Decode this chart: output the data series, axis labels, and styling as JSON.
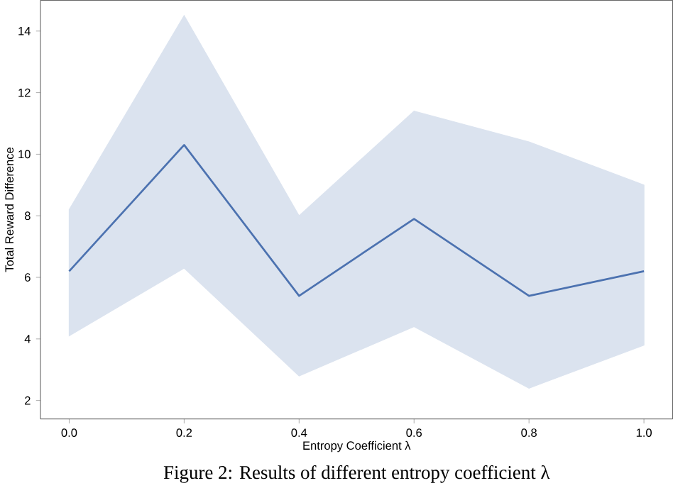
{
  "chart_data": {
    "type": "line",
    "xlabel": "Entropy Coefficient λ",
    "ylabel": "Total Reward Difference",
    "x": [
      0.0,
      0.2,
      0.4,
      0.6,
      0.8,
      1.0
    ],
    "series": [
      {
        "color": "#4c72b0",
        "values": [
          6.2,
          10.3,
          5.4,
          7.9,
          5.4,
          6.2
        ],
        "lower": [
          4.1,
          6.3,
          2.8,
          4.4,
          2.4,
          3.8
        ],
        "upper": [
          8.2,
          14.5,
          8.0,
          11.4,
          10.4,
          9.0
        ]
      }
    ],
    "xlim": [
      -0.05,
      1.05
    ],
    "ylim": [
      1.4,
      15
    ],
    "xticks": [
      {
        "value": 0.0,
        "label": "0.0"
      },
      {
        "value": 0.2,
        "label": "0.2"
      },
      {
        "value": 0.4,
        "label": "0.4"
      },
      {
        "value": 0.6,
        "label": "0.6"
      },
      {
        "value": 0.8,
        "label": "0.8"
      },
      {
        "value": 1.0,
        "label": "1.0"
      }
    ],
    "yticks": [
      2,
      4,
      6,
      8,
      10,
      12,
      14
    ],
    "grid": false,
    "marker": "none",
    "line_style": "solid",
    "annotations": [
      "Figure 2: Results of different entropy coefficient λ"
    ]
  }
}
